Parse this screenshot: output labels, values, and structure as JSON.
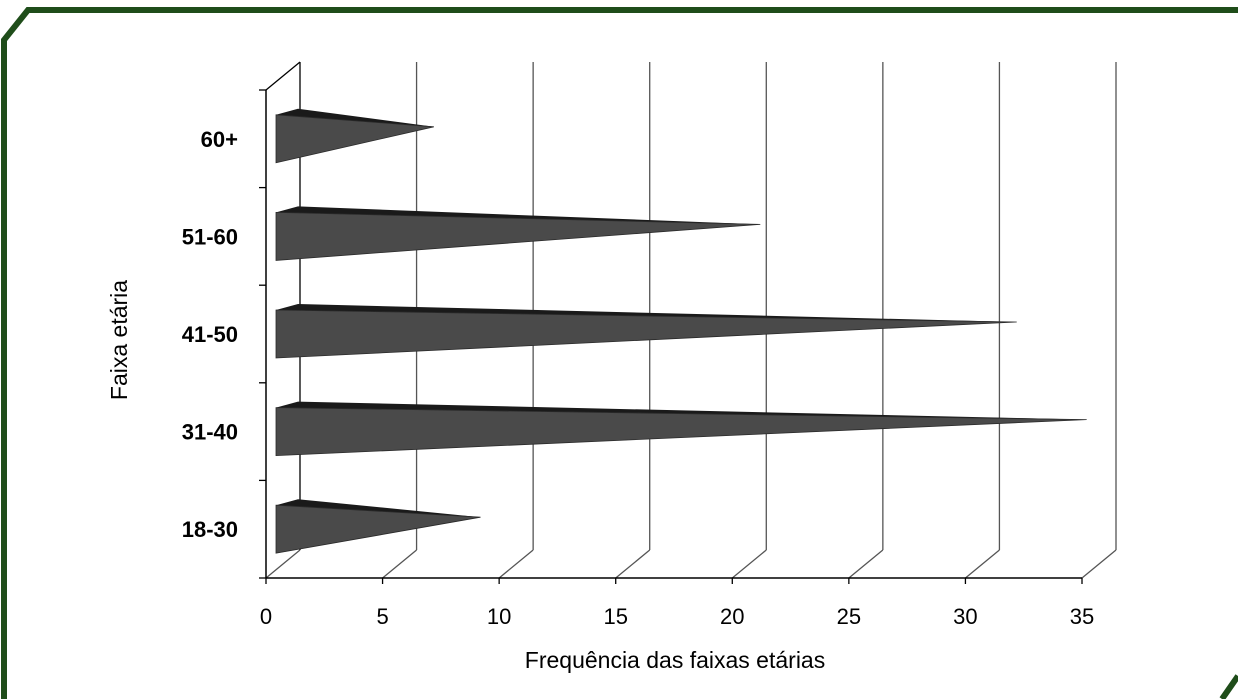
{
  "colors": {
    "frame": "#1f4d1a",
    "cone_front": "#4a4a4a",
    "cone_top": "#1a1a1a",
    "grid": "#555555"
  },
  "chart_data": {
    "type": "bar",
    "orientation": "horizontal",
    "style": "3d-cone",
    "title": "",
    "xlabel": "Frequência das faixas etárias",
    "ylabel": "Faixa etária",
    "categories": [
      "18-30",
      "31-40",
      "41-50",
      "51-60",
      "60+"
    ],
    "values": [
      8,
      34,
      31,
      20,
      6
    ],
    "xlim": [
      0,
      35
    ],
    "xticks": [
      0,
      5,
      10,
      15,
      20,
      25,
      30,
      35
    ],
    "grid": true,
    "legend": "none"
  }
}
